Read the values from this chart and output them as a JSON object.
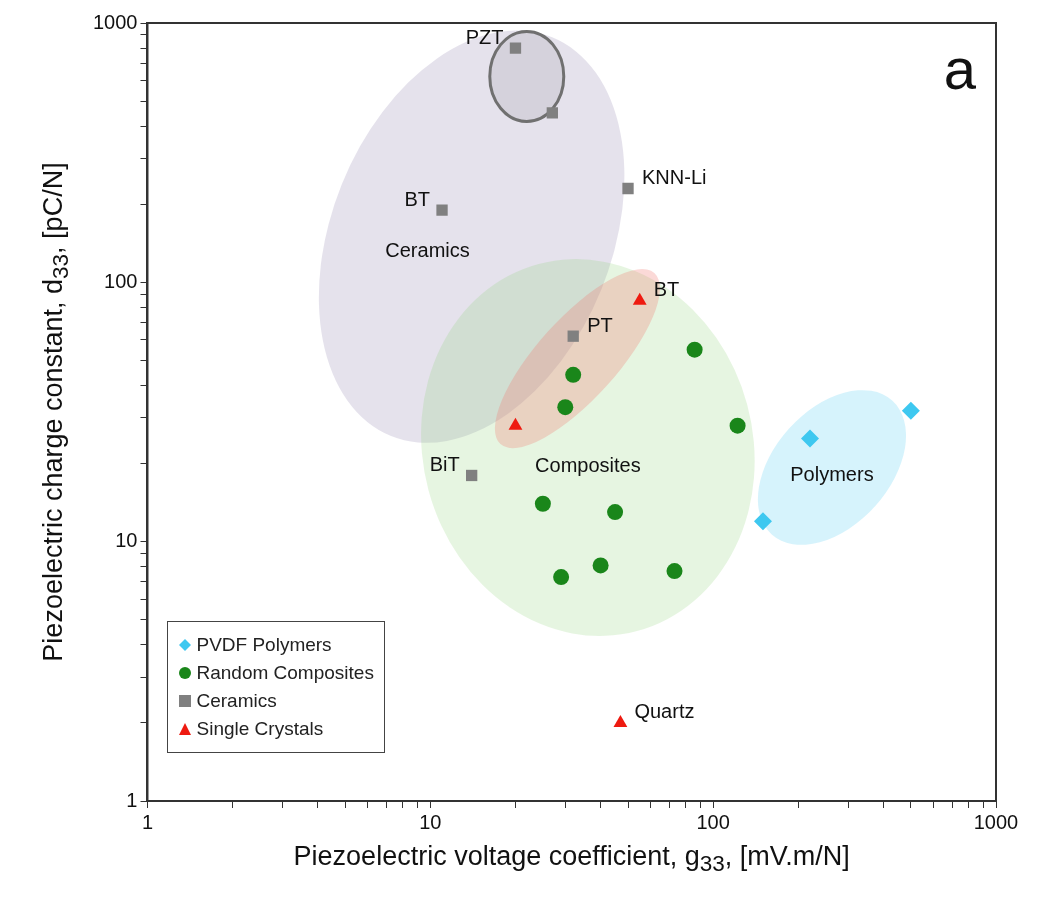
{
  "chart_data": {
    "type": "scatter",
    "xlabel": "Piezoelectric voltage coefficient, g$_{33}$, [mV.m/N]",
    "ylabel": "Piezoelectric charge constant, d$_{33}$, [pC/N]",
    "log": "xy",
    "grid": false,
    "legend": "bottom left",
    "xlim": [
      1,
      1000
    ],
    "ylim": [
      1,
      1000
    ],
    "xticks": [
      1,
      {
        "value": 2,
        "label": null
      },
      {
        "value": 3,
        "label": null
      },
      {
        "value": 4,
        "label": null
      },
      {
        "value": 5,
        "label": null
      },
      {
        "value": 6,
        "label": null
      },
      {
        "value": 7,
        "label": null
      },
      {
        "value": 8,
        "label": null
      },
      {
        "value": 9,
        "label": null
      },
      10,
      {
        "value": 20,
        "label": null
      },
      {
        "value": 30,
        "label": null
      },
      {
        "value": 40,
        "label": null
      },
      {
        "value": 50,
        "label": null
      },
      {
        "value": 60,
        "label": null
      },
      {
        "value": 70,
        "label": null
      },
      {
        "value": 80,
        "label": null
      },
      {
        "value": 90,
        "label": null
      },
      100,
      {
        "value": 200,
        "label": null
      },
      {
        "value": 300,
        "label": null
      },
      {
        "value": 400,
        "label": null
      },
      {
        "value": 500,
        "label": null
      },
      {
        "value": 600,
        "label": null
      },
      {
        "value": 700,
        "label": null
      },
      {
        "value": 800,
        "label": null
      },
      {
        "value": 900,
        "label": null
      },
      1000
    ],
    "yticks": [
      1,
      {
        "value": 2,
        "label": null
      },
      {
        "value": 3,
        "label": null
      },
      {
        "value": 4,
        "label": null
      },
      {
        "value": 5,
        "label": null
      },
      {
        "value": 6,
        "label": null
      },
      {
        "value": 7,
        "label": null
      },
      {
        "value": 8,
        "label": null
      },
      {
        "value": 9,
        "label": null
      },
      10,
      {
        "value": 20,
        "label": null
      },
      {
        "value": 30,
        "label": null
      },
      {
        "value": 40,
        "label": null
      },
      {
        "value": 50,
        "label": null
      },
      {
        "value": 60,
        "label": null
      },
      {
        "value": 70,
        "label": null
      },
      {
        "value": 80,
        "label": null
      },
      {
        "value": 90,
        "label": null
      },
      100,
      {
        "value": 200,
        "label": null
      },
      {
        "value": 300,
        "label": null
      },
      {
        "value": 400,
        "label": null
      },
      {
        "value": 500,
        "label": null
      },
      {
        "value": 600,
        "label": null
      },
      {
        "value": 700,
        "label": null
      },
      {
        "value": 800,
        "label": null
      },
      {
        "value": 900,
        "label": null
      },
      1000
    ],
    "series": [
      {
        "name": "PVDF Polymers",
        "color": "#3ec8f0",
        "marker": "diamond",
        "x": [
          150,
          220,
          500
        ],
        "values": [
          12,
          25,
          32
        ]
      },
      {
        "name": "Random Composites",
        "color": "#1a861a",
        "marker": "circle",
        "x": [
          86,
          32,
          30,
          122,
          25,
          45,
          29,
          40,
          73
        ],
        "values": [
          55,
          44,
          33,
          28,
          14,
          13,
          7.3,
          8.1,
          7.7
        ]
      },
      {
        "name": "Ceramics",
        "color": "#808080",
        "marker": "square",
        "x": [
          20,
          27,
          11,
          50,
          32,
          14
        ],
        "values": [
          800,
          450,
          190,
          230,
          62,
          18
        ]
      },
      {
        "name": "Single Crystals",
        "color": "#ee1a10",
        "marker": "triangle",
        "x": [
          55,
          20,
          47
        ],
        "values": [
          85,
          28,
          2
        ]
      }
    ],
    "annotations": [
      "a",
      "Ceramics",
      "Composites",
      "Polymers",
      {
        "text": "PZT",
        "x": 20,
        "y": 800
      },
      {
        "text": "BT",
        "x": 11,
        "y": 190
      },
      {
        "text": "KNN-Li",
        "x": 50,
        "y": 230
      },
      {
        "text": "BT",
        "x": 55,
        "y": 85
      },
      {
        "text": "PT",
        "x": 32,
        "y": 62
      },
      {
        "text": "BiT",
        "x": 14,
        "y": 18
      },
      {
        "text": "Quartz",
        "x": 47,
        "y": 2
      }
    ]
  }
}
